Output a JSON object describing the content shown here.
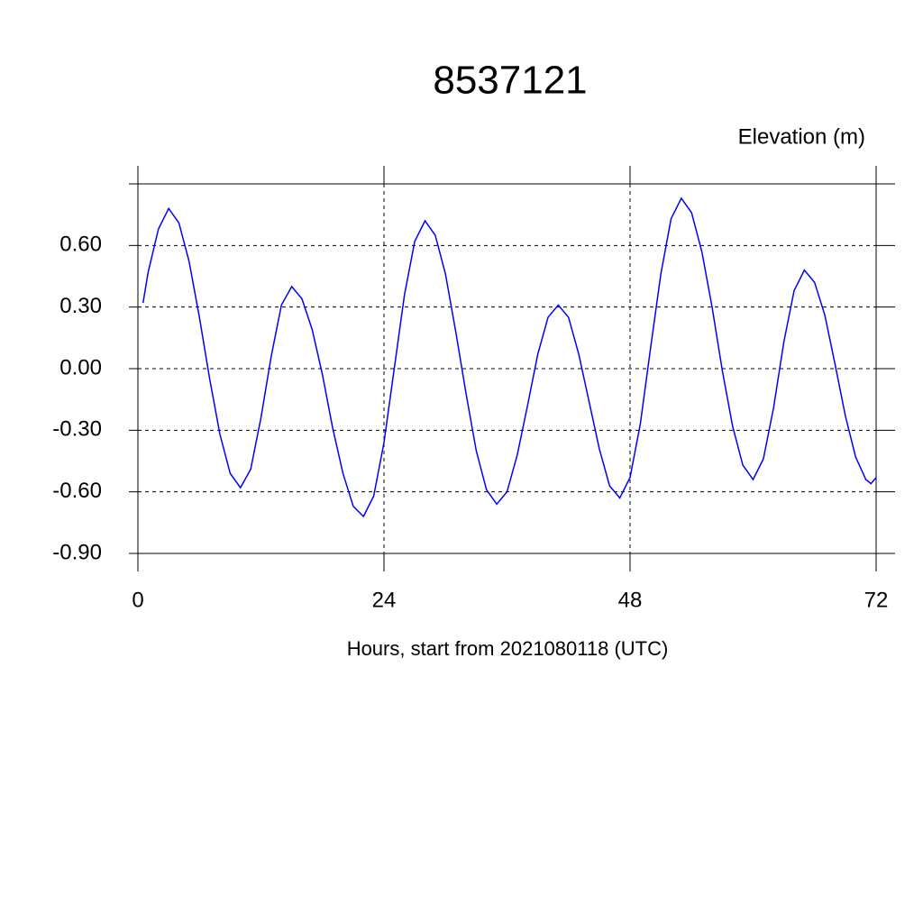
{
  "chart_data": {
    "type": "line",
    "title": "8537121",
    "y_label": "Elevation (m)",
    "x_label": "Hours, start from 2021080118 (UTC)",
    "x": [
      0.5,
      1,
      2,
      3,
      4,
      5,
      6,
      7,
      8,
      9,
      10,
      11,
      12,
      13,
      14,
      15,
      16,
      17,
      18,
      19,
      20,
      21,
      22,
      23,
      24,
      25,
      26,
      27,
      28,
      29,
      30,
      31,
      32,
      33,
      34,
      35,
      36,
      37,
      38,
      39,
      40,
      41,
      42,
      43,
      44,
      45,
      46,
      47,
      48,
      49,
      50,
      51,
      52,
      53,
      54,
      55,
      56,
      57,
      58,
      59,
      60,
      61,
      62,
      63,
      64,
      65,
      66,
      67,
      68,
      69,
      70,
      71,
      71.5,
      72
    ],
    "series": [
      {
        "color": "#0000ff",
        "values": [
          0.32,
          0.47,
          0.68,
          0.78,
          0.71,
          0.52,
          0.25,
          -0.05,
          -0.32,
          -0.51,
          -0.58,
          -0.49,
          -0.24,
          0.06,
          0.31,
          0.4,
          0.34,
          0.19,
          -0.03,
          -0.29,
          -0.51,
          -0.67,
          -0.72,
          -0.62,
          -0.36,
          0.0,
          0.36,
          0.62,
          0.72,
          0.65,
          0.46,
          0.18,
          -0.12,
          -0.4,
          -0.59,
          -0.66,
          -0.6,
          -0.42,
          -0.18,
          0.07,
          0.25,
          0.31,
          0.25,
          0.07,
          -0.16,
          -0.39,
          -0.57,
          -0.63,
          -0.53,
          -0.27,
          0.1,
          0.46,
          0.73,
          0.83,
          0.76,
          0.57,
          0.3,
          -0.01,
          -0.28,
          -0.47,
          -0.54,
          -0.44,
          -0.19,
          0.13,
          0.38,
          0.48,
          0.42,
          0.26,
          0.02,
          -0.23,
          -0.43,
          -0.54,
          -0.56,
          -0.53
        ]
      }
    ],
    "xlim": [
      0,
      72
    ],
    "xticks": [
      0,
      24,
      48,
      72
    ],
    "ylim": [
      -0.9,
      0.9
    ],
    "yticks": [
      {
        "value": -0.9,
        "label": "-0.90"
      },
      {
        "value": -0.6,
        "label": "-0.60"
      },
      {
        "value": -0.3,
        "label": "-0.30"
      },
      {
        "value": 0,
        "label": "0.00"
      },
      {
        "value": 0.3,
        "label": "0.30"
      },
      {
        "value": 0.6,
        "label": "0.60"
      }
    ],
    "grid": true
  }
}
